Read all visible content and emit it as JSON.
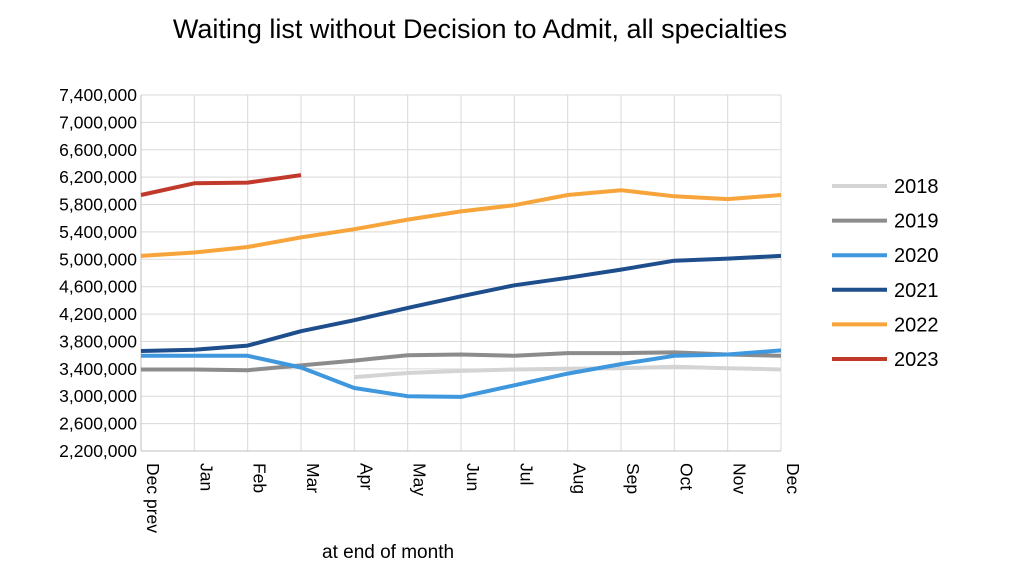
{
  "chart_data": {
    "type": "line",
    "title": "Waiting list without Decision to Admit, all specialties",
    "xlabel": "at end of month",
    "ylabel": "",
    "categories": [
      "Dec prev",
      "Jan",
      "Feb",
      "Mar",
      "Apr",
      "May",
      "Jun",
      "Jul",
      "Aug",
      "Sep",
      "Oct",
      "Nov",
      "Dec"
    ],
    "ylim": [
      2200000,
      7400000
    ],
    "yticks": [
      2200000,
      2600000,
      3000000,
      3400000,
      3800000,
      4200000,
      4600000,
      5000000,
      5400000,
      5800000,
      6200000,
      6600000,
      7000000,
      7400000
    ],
    "ytick_labels": [
      "2,200,000",
      "2,600,000",
      "3,000,000",
      "3,400,000",
      "3,800,000",
      "4,200,000",
      "4,600,000",
      "5,000,000",
      "5,400,000",
      "5,800,000",
      "6,200,000",
      "6,600,000",
      "7,000,000",
      "7,400,000"
    ],
    "grid": "horizontal and vertical",
    "legend_position": "right",
    "series": [
      {
        "name": "2018",
        "color": "#d4d4d4",
        "values": [
          null,
          null,
          null,
          null,
          3280000,
          3340000,
          3370000,
          3390000,
          3400000,
          3410000,
          3430000,
          3410000,
          3390000
        ]
      },
      {
        "name": "2019",
        "color": "#8c8c8c",
        "values": [
          3390000,
          3390000,
          3380000,
          3450000,
          3520000,
          3600000,
          3610000,
          3590000,
          3630000,
          3630000,
          3640000,
          3610000,
          3590000
        ]
      },
      {
        "name": "2020",
        "color": "#3f97dd",
        "values": [
          3590000,
          3590000,
          3590000,
          3420000,
          3120000,
          3000000,
          2990000,
          3160000,
          3330000,
          3470000,
          3590000,
          3610000,
          3670000
        ]
      },
      {
        "name": "2021",
        "color": "#1f4e8c",
        "values": [
          3660000,
          3680000,
          3740000,
          3950000,
          4110000,
          4290000,
          4460000,
          4620000,
          4730000,
          4850000,
          4980000,
          5010000,
          5050000
        ]
      },
      {
        "name": "2022",
        "color": "#f7a43a",
        "values": [
          5050000,
          5100000,
          5180000,
          5320000,
          5440000,
          5580000,
          5700000,
          5790000,
          5940000,
          6010000,
          5920000,
          5880000,
          5940000
        ]
      },
      {
        "name": "2023",
        "color": "#c0392b",
        "values": [
          5940000,
          6110000,
          6120000,
          6230000,
          null,
          null,
          null,
          null,
          null,
          null,
          null,
          null,
          null
        ]
      }
    ]
  }
}
